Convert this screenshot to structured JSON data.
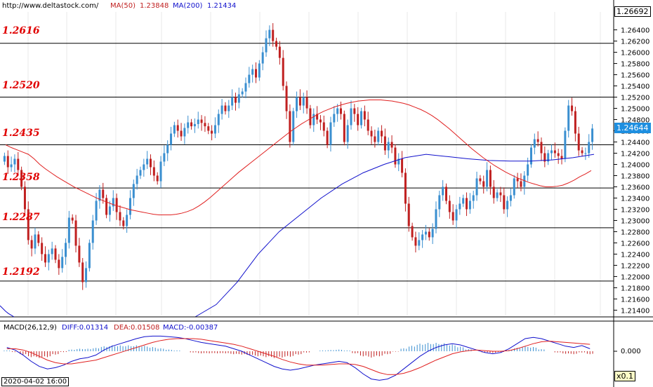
{
  "header": {
    "site": "http://www.deltastock.com/",
    "ma50_label": "MA(50)",
    "ma50_value": "1.23848",
    "ma200_label": "MA(200)",
    "ma200_value": "1.21434"
  },
  "macd_header": {
    "title": "MACD(26,12,9)",
    "diff": "DIFF:0.01314",
    "dea": "DEA:0.01508",
    "macd": "MACD:-0.00387"
  },
  "price_box": "1.26692",
  "last_price_box": "1.24644",
  "macd_zero_label": "0.000",
  "scale_box": "x0.1",
  "date_box": "2020-04-02 16:00",
  "levels": [
    "1.2616",
    "1.2520",
    "1.2435",
    "1.2358",
    "1.2287",
    "1.2192"
  ],
  "colors": {
    "up": "#3a8fd0",
    "down": "#c02020",
    "ma50": "#e02020",
    "ma200": "#1010cc",
    "level": "#000000",
    "label": "#e00000"
  },
  "chart_data": {
    "type": "candlestick",
    "y_ticks": [
      "1.26400",
      "1.26200",
      "1.26000",
      "1.25800",
      "1.25600",
      "1.25400",
      "1.25200",
      "1.25000",
      "1.24800",
      "1.24600",
      "1.24400",
      "1.24200",
      "1.24000",
      "1.23800",
      "1.23600",
      "1.23400",
      "1.23200",
      "1.23000",
      "1.22800",
      "1.22600",
      "1.22400",
      "1.22200",
      "1.22000",
      "1.21800",
      "1.21600",
      "1.21400"
    ],
    "ylim": [
      1.2128,
      1.2672
    ],
    "horizontal_levels": [
      1.2616,
      1.252,
      1.2435,
      1.2358,
      1.2287,
      1.2192
    ],
    "close": [
      1.2415,
      1.2395,
      1.24,
      1.241,
      1.239,
      1.236,
      1.232,
      1.2265,
      1.225,
      1.2275,
      1.226,
      1.224,
      1.2225,
      1.224,
      1.225,
      1.223,
      1.2215,
      1.2235,
      1.226,
      1.2305,
      1.23,
      1.2255,
      1.2225,
      1.219,
      1.2215,
      1.226,
      1.23,
      1.2335,
      1.2355,
      1.234,
      1.231,
      1.2325,
      1.234,
      1.2315,
      1.23,
      1.229,
      1.231,
      1.234,
      1.2365,
      1.238,
      1.239,
      1.24,
      1.241,
      1.2395,
      1.238,
      1.237,
      1.2405,
      1.242,
      1.2435,
      1.2455,
      1.247,
      1.246,
      1.245,
      1.2465,
      1.2475,
      1.2468,
      1.2472,
      1.248,
      1.2474,
      1.2468,
      1.246,
      1.2455,
      1.247,
      1.249,
      1.2505,
      1.2495,
      1.2505,
      1.252,
      1.251,
      1.2525,
      1.253,
      1.2545,
      1.256,
      1.257,
      1.2555,
      1.258,
      1.26,
      1.2625,
      1.264,
      1.262,
      1.261,
      1.259,
      1.254,
      1.2495,
      1.244,
      1.2495,
      1.252,
      1.2505,
      1.252,
      1.25,
      1.247,
      1.249,
      1.248,
      1.2475,
      1.246,
      1.2435,
      1.2475,
      1.249,
      1.25,
      1.249,
      1.244,
      1.247,
      1.25,
      1.249,
      1.247,
      1.2495,
      1.248,
      1.246,
      1.245,
      1.244,
      1.246,
      1.245,
      1.2425,
      1.244,
      1.243,
      1.24,
      1.241,
      1.2385,
      1.233,
      1.229,
      1.227,
      1.2255,
      1.2265,
      1.2275,
      1.228,
      1.227,
      1.2285,
      1.232,
      1.2345,
      1.236,
      1.2335,
      1.2315,
      1.23,
      1.232,
      1.233,
      1.234,
      1.232,
      1.2335,
      1.2345,
      1.2375,
      1.237,
      1.236,
      1.239,
      1.236,
      1.234,
      1.235,
      1.2345,
      1.232,
      1.2335,
      1.2345,
      1.2375,
      1.237,
      1.236,
      1.238,
      1.24,
      1.243,
      1.2445,
      1.244,
      1.242,
      1.2405,
      1.242,
      1.2425,
      1.242,
      1.2415,
      1.241,
      1.246,
      1.2505,
      1.2495,
      1.2455,
      1.2425,
      1.242,
      1.242,
      1.244,
      1.2464
    ],
    "ma50": [
      1.2435,
      1.243,
      1.2426,
      1.2422,
      1.2418,
      1.241,
      1.24,
      1.2392,
      1.2385,
      1.2378,
      1.2372,
      1.2366,
      1.236,
      1.2355,
      1.235,
      1.2345,
      1.234,
      1.2336,
      1.2332,
      1.2328,
      1.2325,
      1.2322,
      1.2319,
      1.2317,
      1.2315,
      1.2313,
      1.2311,
      1.231,
      1.231,
      1.231,
      1.2311,
      1.2313,
      1.2316,
      1.232,
      1.2326,
      1.2333,
      1.2341,
      1.235,
      1.2359,
      1.2368,
      1.2377,
      1.2386,
      1.2394,
      1.2402,
      1.241,
      1.2418,
      1.2426,
      1.2434,
      1.2442,
      1.245,
      1.2458,
      1.2465,
      1.2472,
      1.2478,
      1.2484,
      1.249,
      1.2495,
      1.2499,
      1.2503,
      1.2506,
      1.2509,
      1.2511,
      1.2513,
      1.2514,
      1.2515,
      1.2515,
      1.2515,
      1.2514,
      1.2513,
      1.2511,
      1.2509,
      1.2506,
      1.2502,
      1.2498,
      1.2493,
      1.2487,
      1.248,
      1.2472,
      1.2464,
      1.2455,
      1.2446,
      1.2437,
      1.2428,
      1.242,
      1.2412,
      1.2405,
      1.2398,
      1.2392,
      1.2386,
      1.2381,
      1.2376,
      1.2372,
      1.2368,
      1.2365,
      1.2362,
      1.236,
      1.236,
      1.2361,
      1.2363,
      1.2367,
      1.2372,
      1.2378,
      1.2383,
      1.2389
    ],
    "ma50_start_index": 0,
    "ma200_value_line": [
      1.2148,
      1.2143,
      1.2138,
      1.2134,
      1.2131,
      1.2128
    ],
    "macd": {
      "zero_label": "0.000",
      "dif": [
        0.6,
        0.2,
        -0.6,
        -1.6,
        -2.4,
        -2.8,
        -2.6,
        -2.2,
        -1.6,
        -1.2,
        -1.0,
        -0.6,
        0.2,
        0.8,
        1.2,
        1.6,
        2.0,
        2.3,
        2.4,
        2.4,
        2.3,
        2.2,
        2.0,
        1.7,
        1.4,
        1.2,
        1.0,
        0.8,
        0.4,
        0.0,
        -0.6,
        -1.2,
        -1.8,
        -2.4,
        -2.8,
        -3.0,
        -2.8,
        -2.5,
        -2.2,
        -2.0,
        -1.8,
        -1.6,
        -1.8,
        -2.6,
        -3.6,
        -4.4,
        -4.6,
        -4.4,
        -3.8,
        -2.8,
        -1.8,
        -0.8,
        0.0,
        0.6,
        1.0,
        1.2,
        1.0,
        0.6,
        0.2,
        -0.2,
        -0.4,
        -0.2,
        0.4,
        1.2,
        2.0,
        2.2,
        2.0,
        1.6,
        1.2,
        0.8,
        0.6,
        0.9,
        0.4
      ],
      "dea": [
        0.4,
        0.4,
        0.2,
        -0.2,
        -0.8,
        -1.4,
        -1.8,
        -2.0,
        -2.0,
        -1.8,
        -1.6,
        -1.4,
        -1.0,
        -0.6,
        -0.2,
        0.2,
        0.6,
        1.0,
        1.4,
        1.7,
        1.9,
        2.0,
        2.0,
        2.0,
        1.9,
        1.7,
        1.5,
        1.3,
        1.1,
        0.8,
        0.4,
        0.0,
        -0.4,
        -0.8,
        -1.3,
        -1.7,
        -2.0,
        -2.2,
        -2.2,
        -2.2,
        -2.1,
        -2.0,
        -2.0,
        -2.1,
        -2.4,
        -2.9,
        -3.4,
        -3.7,
        -3.7,
        -3.5,
        -3.1,
        -2.6,
        -2.0,
        -1.4,
        -0.9,
        -0.4,
        -0.1,
        0.1,
        0.2,
        0.1,
        0.0,
        0.0,
        0.1,
        0.4,
        0.8,
        1.2,
        1.5,
        1.6,
        1.5,
        1.4,
        1.3,
        1.2,
        1.1
      ]
    }
  }
}
